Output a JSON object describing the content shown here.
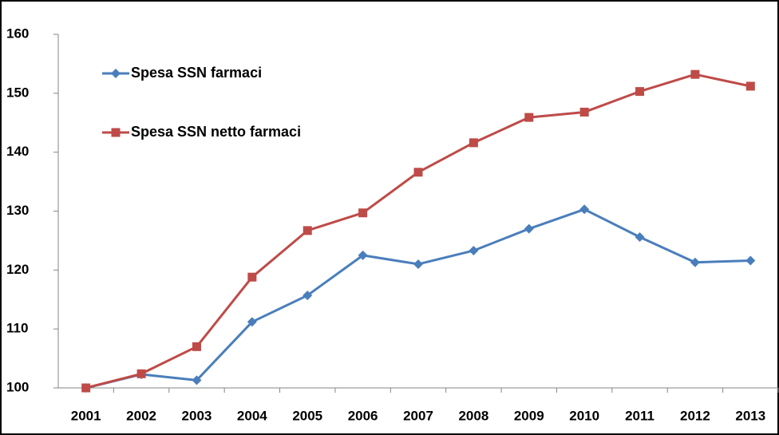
{
  "chart_data": {
    "type": "line",
    "categories": [
      "2001",
      "2002",
      "2003",
      "2004",
      "2005",
      "2006",
      "2007",
      "2008",
      "2009",
      "2010",
      "2011",
      "2012",
      "2013"
    ],
    "series": [
      {
        "name": "Spesa SSN farmaci",
        "color": "#4a7ebb",
        "marker": "diamond",
        "values": [
          100,
          102.3,
          101.3,
          111.2,
          115.7,
          122.5,
          121,
          123.3,
          127,
          130.3,
          125.6,
          121.3,
          121.6
        ]
      },
      {
        "name": "Spesa SSN netto farmaci",
        "color": "#be4b48",
        "marker": "square",
        "values": [
          100,
          102.4,
          107,
          118.8,
          126.7,
          129.7,
          136.6,
          141.6,
          145.9,
          146.8,
          150.3,
          153.2,
          151.2
        ]
      }
    ],
    "ylim": [
      100,
      160
    ],
    "yticks": [
      100,
      110,
      120,
      130,
      140,
      150,
      160
    ],
    "grid": false,
    "legend": "upper left"
  }
}
